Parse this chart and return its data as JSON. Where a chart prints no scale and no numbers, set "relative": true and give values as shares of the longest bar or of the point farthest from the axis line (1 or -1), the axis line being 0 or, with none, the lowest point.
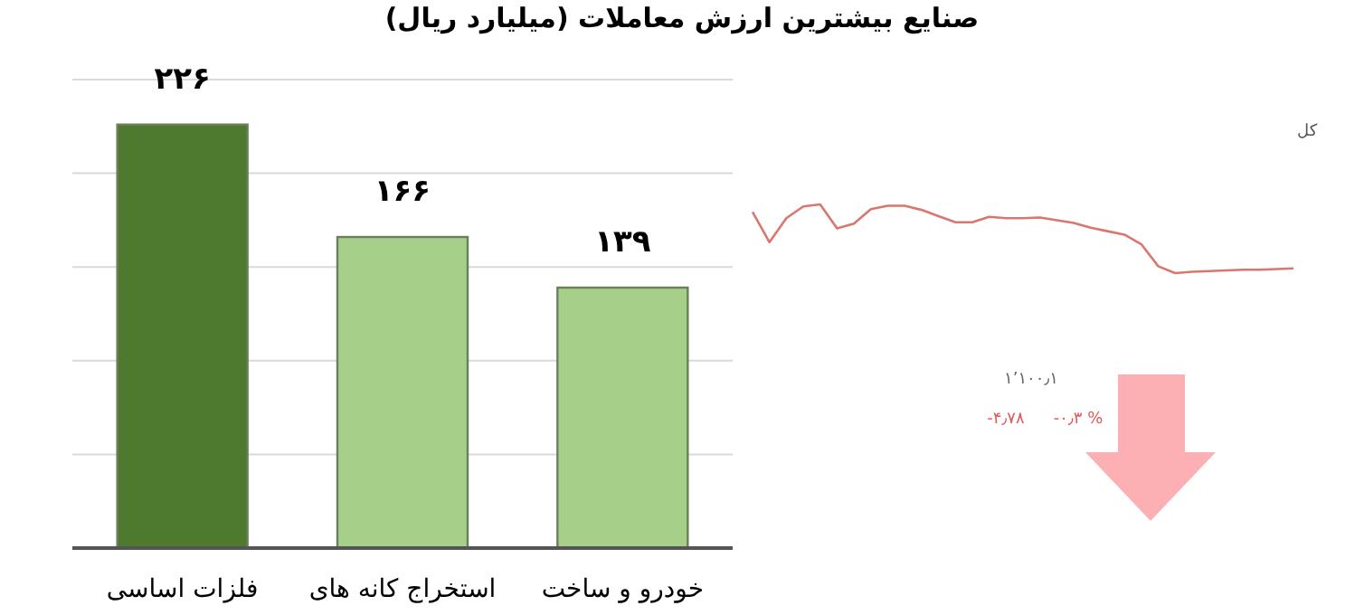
{
  "chart_data": [
    {
      "type": "bar",
      "title": "صنایع بیشترین ارزش معاملات (میلیارد ریال)",
      "categories": [
        "فلزات اساسی",
        "استخراج کانه های",
        "خودرو و ساخت"
      ],
      "values": [
        226,
        166,
        139
      ],
      "colors": [
        "#4e7a2f",
        "#a6cf8a",
        "#a6cf8a"
      ],
      "value_labels": [
        "۲۲۶",
        "۱۶۶",
        "۱۳۹"
      ],
      "ylim": [
        0,
        250
      ],
      "yticks": [
        {
          "value": 0,
          "label": null
        },
        {
          "value": 50,
          "label": null
        },
        {
          "value": 100,
          "label": null
        },
        {
          "value": 150,
          "label": null
        },
        {
          "value": 200,
          "label": null
        },
        {
          "value": 250,
          "label": null
        }
      ],
      "grid": "y",
      "tick_labels": "x"
    },
    {
      "type": "line",
      "relative": true,
      "categories": [
        null,
        null,
        null,
        null,
        null,
        null,
        null,
        null,
        null,
        null,
        null,
        null,
        null,
        null,
        null,
        null,
        null,
        null,
        null,
        null,
        null,
        null,
        null,
        null,
        null,
        null,
        null,
        null,
        null,
        null,
        null,
        null,
        null
      ],
      "series": [
        {
          "name": "کل",
          "color": "#d9776f",
          "values": [
            0.89,
            0.45,
            0.8,
            0.97,
            1,
            0.65,
            0.72,
            0.93,
            0.98,
            0.98,
            0.92,
            0.83,
            0.74,
            0.74,
            0.82,
            0.8,
            0.8,
            0.81,
            0.77,
            0.73,
            0.66,
            0.61,
            0.56,
            0.42,
            0.1,
            0,
            0.02,
            0.03,
            0.04,
            0.05,
            0.05,
            0.06,
            0.07
          ]
        }
      ],
      "annotations": [
        "۱٬۱۰۰٫۱",
        "-۴٫۷۸",
        "-۰٫۳ %"
      ]
    }
  ]
}
